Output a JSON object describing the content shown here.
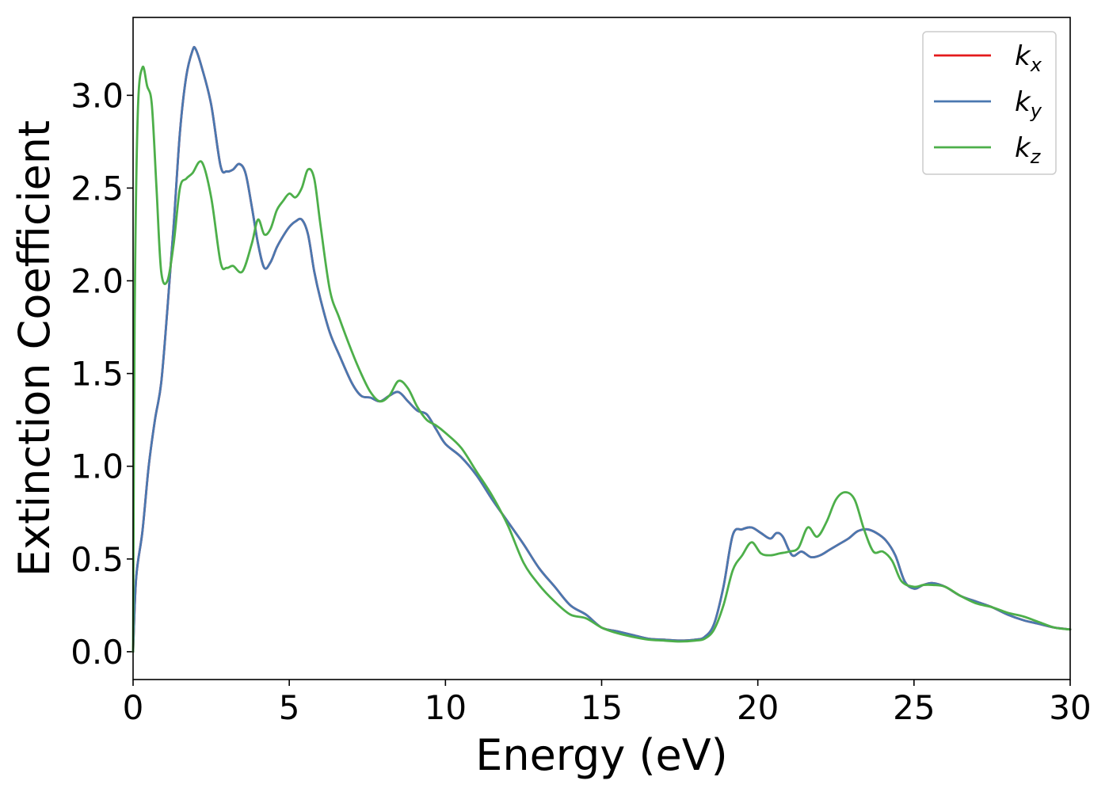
{
  "chart_data": {
    "type": "line",
    "xlabel": "Energy (eV)",
    "ylabel": "Extinction Coefficient",
    "xlim": [
      0,
      30
    ],
    "ylim": [
      -0.15,
      3.42
    ],
    "xticks": [
      0,
      5,
      10,
      15,
      20,
      25,
      30
    ],
    "xtick_labels": [
      "0",
      "5",
      "10",
      "15",
      "20",
      "25",
      "30"
    ],
    "yticks": [
      0.0,
      0.5,
      1.0,
      1.5,
      2.0,
      2.5,
      3.0
    ],
    "ytick_labels": [
      "0.0",
      "0.5",
      "1.0",
      "1.5",
      "2.0",
      "2.5",
      "3.0"
    ],
    "grid": false,
    "legend_position": "top-right",
    "series": [
      {
        "name": "k",
        "subscript": "x",
        "color": "#e41a1c",
        "x": [
          0,
          0.1,
          0.3,
          0.5,
          0.7,
          0.9,
          1.1,
          1.3,
          1.5,
          1.7,
          1.9,
          2.0,
          2.2,
          2.5,
          2.8,
          3.0,
          3.2,
          3.4,
          3.6,
          3.8,
          4.0,
          4.2,
          4.4,
          4.6,
          4.8,
          5.0,
          5.2,
          5.4,
          5.6,
          5.8,
          6.0,
          6.3,
          6.6,
          7.0,
          7.3,
          7.6,
          7.9,
          8.2,
          8.5,
          8.8,
          9.1,
          9.4,
          9.7,
          10.0,
          10.5,
          11.0,
          11.5,
          12.0,
          12.5,
          13.0,
          13.5,
          14.0,
          14.5,
          15.0,
          15.5,
          16.0,
          16.5,
          17.0,
          17.5,
          18.0,
          18.3,
          18.6,
          18.9,
          19.2,
          19.5,
          19.8,
          20.1,
          20.4,
          20.6,
          20.8,
          21.1,
          21.4,
          21.7,
          22.0,
          22.3,
          22.6,
          22.9,
          23.2,
          23.5,
          23.8,
          24.1,
          24.4,
          24.7,
          25.0,
          25.3,
          25.6,
          26.0,
          26.5,
          27.0,
          27.5,
          28.0,
          28.5,
          29.0,
          29.5,
          30.0
        ],
        "y": [
          0.0,
          0.4,
          0.65,
          1.0,
          1.25,
          1.45,
          1.85,
          2.3,
          2.8,
          3.1,
          3.24,
          3.25,
          3.15,
          2.95,
          2.62,
          2.59,
          2.6,
          2.63,
          2.58,
          2.4,
          2.2,
          2.07,
          2.1,
          2.18,
          2.24,
          2.29,
          2.32,
          2.33,
          2.25,
          2.05,
          1.9,
          1.72,
          1.6,
          1.45,
          1.38,
          1.37,
          1.35,
          1.38,
          1.4,
          1.35,
          1.3,
          1.28,
          1.2,
          1.12,
          1.05,
          0.95,
          0.82,
          0.7,
          0.58,
          0.45,
          0.35,
          0.25,
          0.2,
          0.13,
          0.11,
          0.09,
          0.07,
          0.065,
          0.06,
          0.065,
          0.08,
          0.15,
          0.35,
          0.63,
          0.66,
          0.67,
          0.64,
          0.61,
          0.64,
          0.62,
          0.52,
          0.54,
          0.51,
          0.52,
          0.55,
          0.58,
          0.61,
          0.65,
          0.66,
          0.64,
          0.6,
          0.52,
          0.38,
          0.34,
          0.36,
          0.37,
          0.35,
          0.3,
          0.27,
          0.24,
          0.2,
          0.17,
          0.15,
          0.13,
          0.12
        ]
      },
      {
        "name": "k",
        "subscript": "y",
        "color": "#4a78b0",
        "x": [
          0,
          0.1,
          0.3,
          0.5,
          0.7,
          0.9,
          1.1,
          1.3,
          1.5,
          1.7,
          1.9,
          2.0,
          2.2,
          2.5,
          2.8,
          3.0,
          3.2,
          3.4,
          3.6,
          3.8,
          4.0,
          4.2,
          4.4,
          4.6,
          4.8,
          5.0,
          5.2,
          5.4,
          5.6,
          5.8,
          6.0,
          6.3,
          6.6,
          7.0,
          7.3,
          7.6,
          7.9,
          8.2,
          8.5,
          8.8,
          9.1,
          9.4,
          9.7,
          10.0,
          10.5,
          11.0,
          11.5,
          12.0,
          12.5,
          13.0,
          13.5,
          14.0,
          14.5,
          15.0,
          15.5,
          16.0,
          16.5,
          17.0,
          17.5,
          18.0,
          18.3,
          18.6,
          18.9,
          19.2,
          19.5,
          19.8,
          20.1,
          20.4,
          20.6,
          20.8,
          21.1,
          21.4,
          21.7,
          22.0,
          22.3,
          22.6,
          22.9,
          23.2,
          23.5,
          23.8,
          24.1,
          24.4,
          24.7,
          25.0,
          25.3,
          25.6,
          26.0,
          26.5,
          27.0,
          27.5,
          28.0,
          28.5,
          29.0,
          29.5,
          30.0
        ],
        "y": [
          0.0,
          0.4,
          0.65,
          1.0,
          1.25,
          1.45,
          1.85,
          2.3,
          2.8,
          3.1,
          3.24,
          3.25,
          3.15,
          2.95,
          2.62,
          2.59,
          2.6,
          2.63,
          2.58,
          2.4,
          2.2,
          2.07,
          2.1,
          2.18,
          2.24,
          2.29,
          2.32,
          2.33,
          2.25,
          2.05,
          1.9,
          1.72,
          1.6,
          1.45,
          1.38,
          1.37,
          1.35,
          1.38,
          1.4,
          1.35,
          1.3,
          1.28,
          1.2,
          1.12,
          1.05,
          0.95,
          0.82,
          0.7,
          0.58,
          0.45,
          0.35,
          0.25,
          0.2,
          0.13,
          0.11,
          0.09,
          0.07,
          0.065,
          0.06,
          0.065,
          0.08,
          0.15,
          0.35,
          0.63,
          0.66,
          0.67,
          0.64,
          0.61,
          0.64,
          0.62,
          0.52,
          0.54,
          0.51,
          0.52,
          0.55,
          0.58,
          0.61,
          0.65,
          0.66,
          0.64,
          0.6,
          0.52,
          0.38,
          0.34,
          0.36,
          0.37,
          0.35,
          0.3,
          0.27,
          0.24,
          0.2,
          0.17,
          0.15,
          0.13,
          0.12
        ]
      },
      {
        "name": "k",
        "subscript": "z",
        "color": "#4daf4a",
        "x": [
          0,
          0.05,
          0.15,
          0.3,
          0.45,
          0.6,
          0.75,
          0.9,
          1.1,
          1.3,
          1.5,
          1.7,
          1.9,
          2.2,
          2.5,
          2.8,
          3.0,
          3.2,
          3.5,
          3.8,
          4.0,
          4.2,
          4.4,
          4.6,
          4.8,
          5.0,
          5.2,
          5.4,
          5.6,
          5.8,
          6.0,
          6.3,
          6.6,
          7.0,
          7.3,
          7.6,
          7.9,
          8.2,
          8.5,
          8.8,
          9.1,
          9.4,
          9.7,
          10.0,
          10.5,
          11.0,
          11.5,
          12.0,
          12.5,
          13.0,
          13.5,
          14.0,
          14.5,
          15.0,
          15.5,
          16.0,
          16.5,
          17.0,
          17.5,
          18.0,
          18.3,
          18.6,
          18.9,
          19.2,
          19.5,
          19.8,
          20.1,
          20.4,
          20.7,
          21.0,
          21.3,
          21.6,
          21.9,
          22.2,
          22.5,
          22.8,
          23.1,
          23.4,
          23.7,
          24.0,
          24.3,
          24.6,
          25.0,
          25.3,
          25.6,
          26.0,
          26.5,
          27.0,
          27.5,
          28.0,
          28.5,
          29.0,
          29.5,
          30.0
        ],
        "y": [
          0.0,
          1.8,
          2.9,
          3.15,
          3.05,
          2.95,
          2.5,
          2.05,
          2.0,
          2.2,
          2.5,
          2.55,
          2.58,
          2.64,
          2.45,
          2.1,
          2.07,
          2.08,
          2.05,
          2.2,
          2.33,
          2.25,
          2.28,
          2.38,
          2.43,
          2.47,
          2.45,
          2.5,
          2.6,
          2.55,
          2.3,
          1.95,
          1.8,
          1.62,
          1.5,
          1.4,
          1.35,
          1.38,
          1.46,
          1.42,
          1.32,
          1.25,
          1.22,
          1.18,
          1.1,
          0.97,
          0.84,
          0.68,
          0.48,
          0.36,
          0.27,
          0.2,
          0.18,
          0.13,
          0.1,
          0.08,
          0.065,
          0.06,
          0.055,
          0.06,
          0.07,
          0.12,
          0.25,
          0.44,
          0.52,
          0.59,
          0.53,
          0.52,
          0.53,
          0.54,
          0.56,
          0.67,
          0.62,
          0.7,
          0.82,
          0.86,
          0.82,
          0.66,
          0.54,
          0.54,
          0.49,
          0.38,
          0.35,
          0.36,
          0.36,
          0.35,
          0.3,
          0.26,
          0.24,
          0.21,
          0.19,
          0.16,
          0.13,
          0.12
        ]
      }
    ]
  }
}
